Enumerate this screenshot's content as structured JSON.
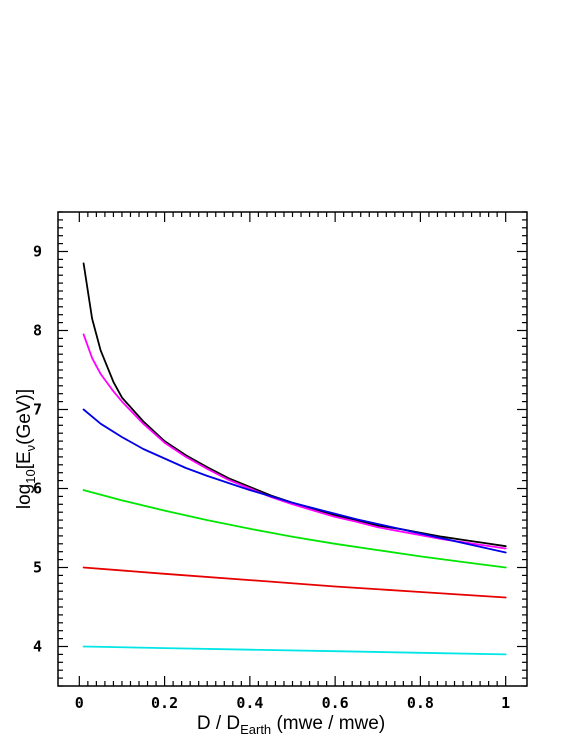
{
  "chart_data": {
    "type": "line",
    "title": "",
    "xlabel": {
      "prefix": "D / D",
      "sub": "Earth",
      "suffix": " (mwe / mwe)"
    },
    "ylabel": {
      "prefix": "log",
      "sub1": "10",
      "mid": "[E",
      "sub2": "ν",
      "suffix": "(GeV)]"
    },
    "xlim": [
      -0.05,
      1.05
    ],
    "ylim": [
      3.5,
      9.5
    ],
    "xticks": [
      0,
      0.2,
      0.4,
      0.6,
      0.8,
      1
    ],
    "xtick_labels": [
      "0",
      "0.2",
      "0.4",
      "0.6",
      "0.8",
      "1"
    ],
    "yticks": [
      4,
      5,
      6,
      7,
      8,
      9
    ],
    "ytick_labels": [
      "4",
      "5",
      "6",
      "7",
      "8",
      "9"
    ],
    "grid": false,
    "series": [
      {
        "color": "#000000",
        "x": [
          0.01,
          0.03,
          0.05,
          0.08,
          0.1,
          0.15,
          0.2,
          0.25,
          0.3,
          0.35,
          0.4,
          0.45,
          0.5,
          0.55,
          0.6,
          0.65,
          0.7,
          0.75,
          0.8,
          0.85,
          0.9,
          0.95,
          1.0
        ],
        "y": [
          8.85,
          8.15,
          7.75,
          7.35,
          7.15,
          6.85,
          6.6,
          6.42,
          6.27,
          6.13,
          6.02,
          5.91,
          5.82,
          5.74,
          5.66,
          5.6,
          5.53,
          5.49,
          5.44,
          5.39,
          5.35,
          5.31,
          5.27
        ]
      },
      {
        "color": "#ff00ff",
        "x": [
          0.01,
          0.03,
          0.05,
          0.08,
          0.1,
          0.15,
          0.2,
          0.25,
          0.3,
          0.35,
          0.4,
          0.45,
          0.5,
          0.55,
          0.6,
          0.65,
          0.7,
          0.75,
          0.8,
          0.85,
          0.9,
          0.95,
          1.0
        ],
        "y": [
          7.95,
          7.65,
          7.45,
          7.23,
          7.1,
          6.82,
          6.58,
          6.4,
          6.25,
          6.11,
          6.0,
          5.89,
          5.8,
          5.72,
          5.64,
          5.58,
          5.51,
          5.46,
          5.41,
          5.36,
          5.32,
          5.28,
          5.24
        ]
      },
      {
        "color": "#0000e6",
        "x": [
          0.01,
          0.05,
          0.1,
          0.15,
          0.2,
          0.25,
          0.3,
          0.35,
          0.4,
          0.45,
          0.5,
          0.55,
          0.6,
          0.65,
          0.7,
          0.75,
          0.8,
          0.85,
          0.9,
          0.95,
          1.0
        ],
        "y": [
          7.0,
          6.82,
          6.65,
          6.5,
          6.38,
          6.26,
          6.16,
          6.07,
          5.98,
          5.9,
          5.82,
          5.75,
          5.68,
          5.61,
          5.55,
          5.49,
          5.43,
          5.37,
          5.31,
          5.25,
          5.19
        ]
      },
      {
        "color": "#00e600",
        "x": [
          0.01,
          0.1,
          0.2,
          0.3,
          0.4,
          0.5,
          0.6,
          0.7,
          0.8,
          0.9,
          1.0
        ],
        "y": [
          5.98,
          5.85,
          5.72,
          5.6,
          5.49,
          5.39,
          5.3,
          5.22,
          5.14,
          5.07,
          5.0
        ]
      },
      {
        "color": "#e60000",
        "x": [
          0.01,
          0.2,
          0.4,
          0.6,
          0.8,
          1.0
        ],
        "y": [
          5.0,
          4.92,
          4.84,
          4.76,
          4.69,
          4.62
        ]
      },
      {
        "color": "#00e6e6",
        "x": [
          0.01,
          0.2,
          0.4,
          0.6,
          0.8,
          1.0
        ],
        "y": [
          4.0,
          3.98,
          3.96,
          3.94,
          3.92,
          3.9
        ]
      }
    ]
  }
}
